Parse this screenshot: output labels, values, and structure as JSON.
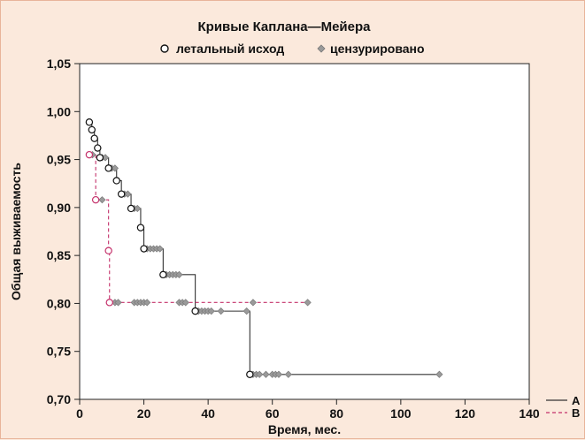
{
  "chart_data": {
    "type": "line",
    "title": "Кривые Каплана—Мейера",
    "legend_top": {
      "event_label": "летальный исход",
      "censored_label": "цензурировано"
    },
    "xlabel": "Время, мес.",
    "ylabel": "Общая выживаемость",
    "xlim": [
      0,
      140
    ],
    "ylim": [
      0.7,
      1.05
    ],
    "x_ticks": [
      0,
      20,
      40,
      60,
      80,
      100,
      120,
      140
    ],
    "y_ticks": [
      0.7,
      0.75,
      0.8,
      0.85,
      0.9,
      0.95,
      1.0,
      1.05
    ],
    "y_tick_labels": [
      "0,70",
      "0,75",
      "0,80",
      "0,85",
      "0,90",
      "0,95",
      "1,00",
      "1,05"
    ],
    "grid": false,
    "legend_bottom_placement": "bottom-right",
    "series": [
      {
        "name": "A",
        "color": "#333333",
        "dash": "solid",
        "steps": [
          [
            3,
            0.989
          ],
          [
            3.8,
            0.981
          ],
          [
            4.6,
            0.972
          ],
          [
            5.6,
            0.962
          ],
          [
            6.3,
            0.952
          ],
          [
            9,
            0.941
          ],
          [
            11.5,
            0.928
          ],
          [
            13,
            0.914
          ],
          [
            16,
            0.899
          ],
          [
            19,
            0.879
          ],
          [
            20,
            0.857
          ],
          [
            26,
            0.83
          ],
          [
            36,
            0.792
          ],
          [
            53,
            0.726
          ]
        ],
        "end_x": 112,
        "events": [
          [
            3,
            0.989
          ],
          [
            3.8,
            0.981
          ],
          [
            4.6,
            0.972
          ],
          [
            5.6,
            0.962
          ],
          [
            6.3,
            0.952
          ],
          [
            9,
            0.941
          ],
          [
            11.5,
            0.928
          ],
          [
            13,
            0.914
          ],
          [
            16,
            0.899
          ],
          [
            19,
            0.879
          ],
          [
            20,
            0.857
          ],
          [
            26,
            0.83
          ],
          [
            36,
            0.792
          ],
          [
            53,
            0.726
          ]
        ],
        "censored": [
          [
            7,
            0.952
          ],
          [
            8,
            0.952
          ],
          [
            10,
            0.941
          ],
          [
            11,
            0.941
          ],
          [
            14,
            0.914
          ],
          [
            15,
            0.914
          ],
          [
            17,
            0.899
          ],
          [
            18,
            0.899
          ],
          [
            21,
            0.857
          ],
          [
            22,
            0.857
          ],
          [
            23,
            0.857
          ],
          [
            24,
            0.857
          ],
          [
            25,
            0.857
          ],
          [
            27,
            0.83
          ],
          [
            28,
            0.83
          ],
          [
            29,
            0.83
          ],
          [
            30,
            0.83
          ],
          [
            31,
            0.83
          ],
          [
            37,
            0.792
          ],
          [
            38,
            0.792
          ],
          [
            39,
            0.792
          ],
          [
            40,
            0.792
          ],
          [
            41,
            0.792
          ],
          [
            44,
            0.792
          ],
          [
            52,
            0.792
          ],
          [
            54,
            0.726
          ],
          [
            55,
            0.726
          ],
          [
            56,
            0.726
          ],
          [
            58,
            0.726
          ],
          [
            60,
            0.726
          ],
          [
            61,
            0.726
          ],
          [
            62,
            0.726
          ],
          [
            65,
            0.726
          ],
          [
            112,
            0.726
          ]
        ]
      },
      {
        "name": "B",
        "color": "#c4306a",
        "dash": "dashed",
        "steps": [
          [
            3,
            0.955
          ],
          [
            5,
            0.908
          ],
          [
            9,
            0.855
          ],
          [
            9.3,
            0.801
          ]
        ],
        "end_x": 71,
        "events": [
          [
            3,
            0.955
          ],
          [
            5,
            0.908
          ],
          [
            9,
            0.855
          ],
          [
            9.3,
            0.801
          ]
        ],
        "censored": [
          [
            4,
            0.955
          ],
          [
            7,
            0.908
          ],
          [
            11,
            0.801
          ],
          [
            12,
            0.801
          ],
          [
            17,
            0.801
          ],
          [
            18,
            0.801
          ],
          [
            19,
            0.801
          ],
          [
            20,
            0.801
          ],
          [
            21,
            0.801
          ],
          [
            31,
            0.801
          ],
          [
            32,
            0.801
          ],
          [
            33,
            0.801
          ],
          [
            54,
            0.801
          ],
          [
            71,
            0.801
          ]
        ]
      }
    ],
    "legend_bottom": [
      "A",
      "B"
    ]
  }
}
